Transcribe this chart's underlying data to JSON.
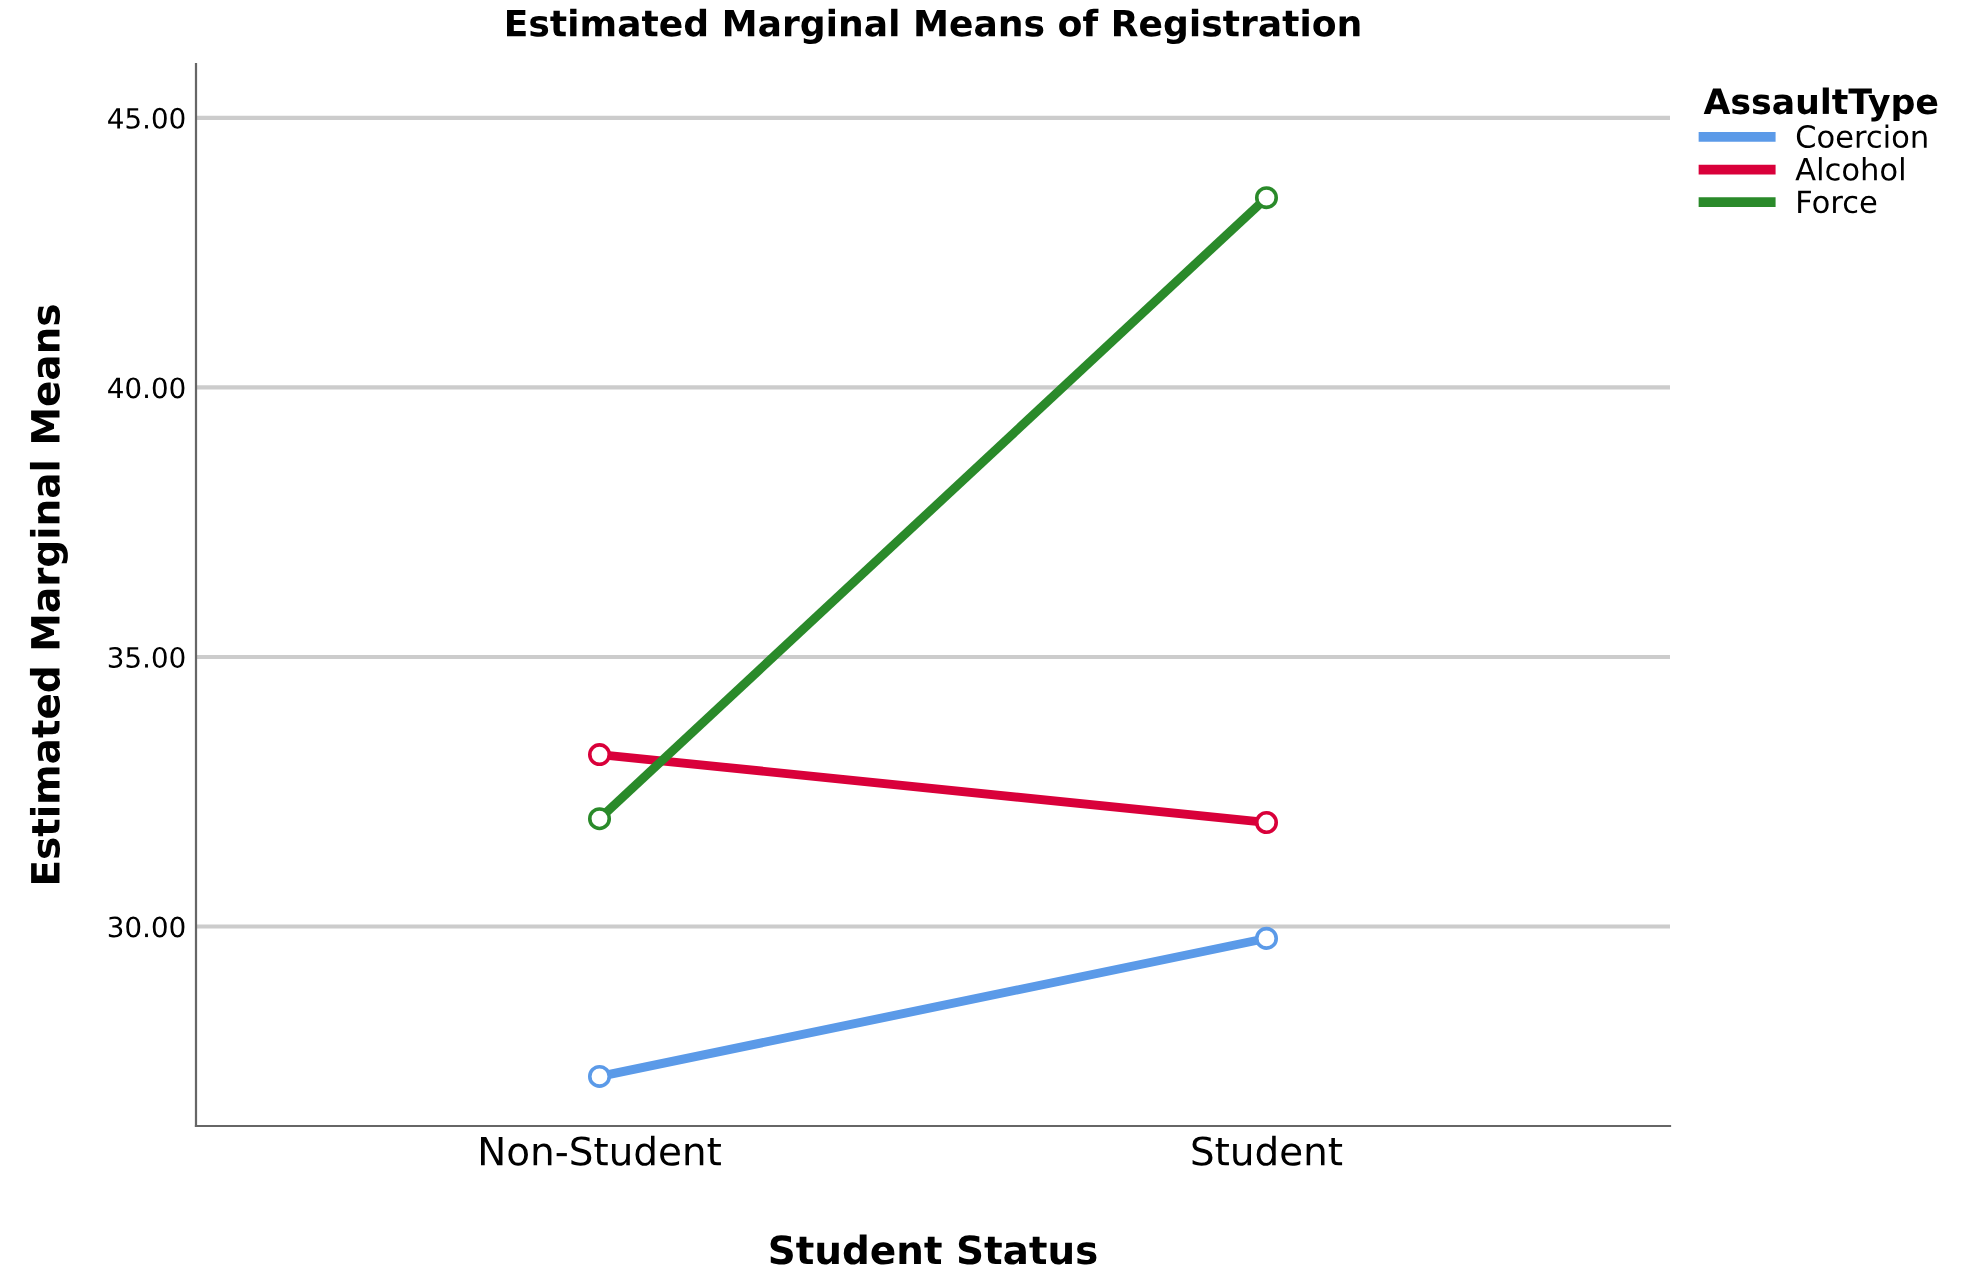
{
  "chart_data": {
    "type": "line",
    "title": "Estimated Marginal Means of Registration",
    "xlabel": "Student Status",
    "ylabel": "Estimated Marginal Means",
    "legend_title": "AssaultType",
    "categories": [
      "Non-Student",
      "Student"
    ],
    "series": [
      {
        "name": "Coercion",
        "color": "#5b9ae8",
        "values": [
          27.22,
          29.78
        ]
      },
      {
        "name": "Alcohol",
        "color": "#d9003a",
        "values": [
          33.19,
          31.93
        ]
      },
      {
        "name": "Force",
        "color": "#2a8a2a",
        "values": [
          32.0,
          43.52
        ]
      }
    ],
    "ylim": [
      26.3,
      46.0
    ],
    "yticks": [
      {
        "value": 30,
        "label": "30.00"
      },
      {
        "value": 35,
        "label": "35.00"
      },
      {
        "value": 40,
        "label": "40.00"
      },
      {
        "value": 45,
        "label": "45.00"
      }
    ],
    "grid": "y",
    "legend": "top right",
    "marker": "circle",
    "line_style": "solid"
  }
}
